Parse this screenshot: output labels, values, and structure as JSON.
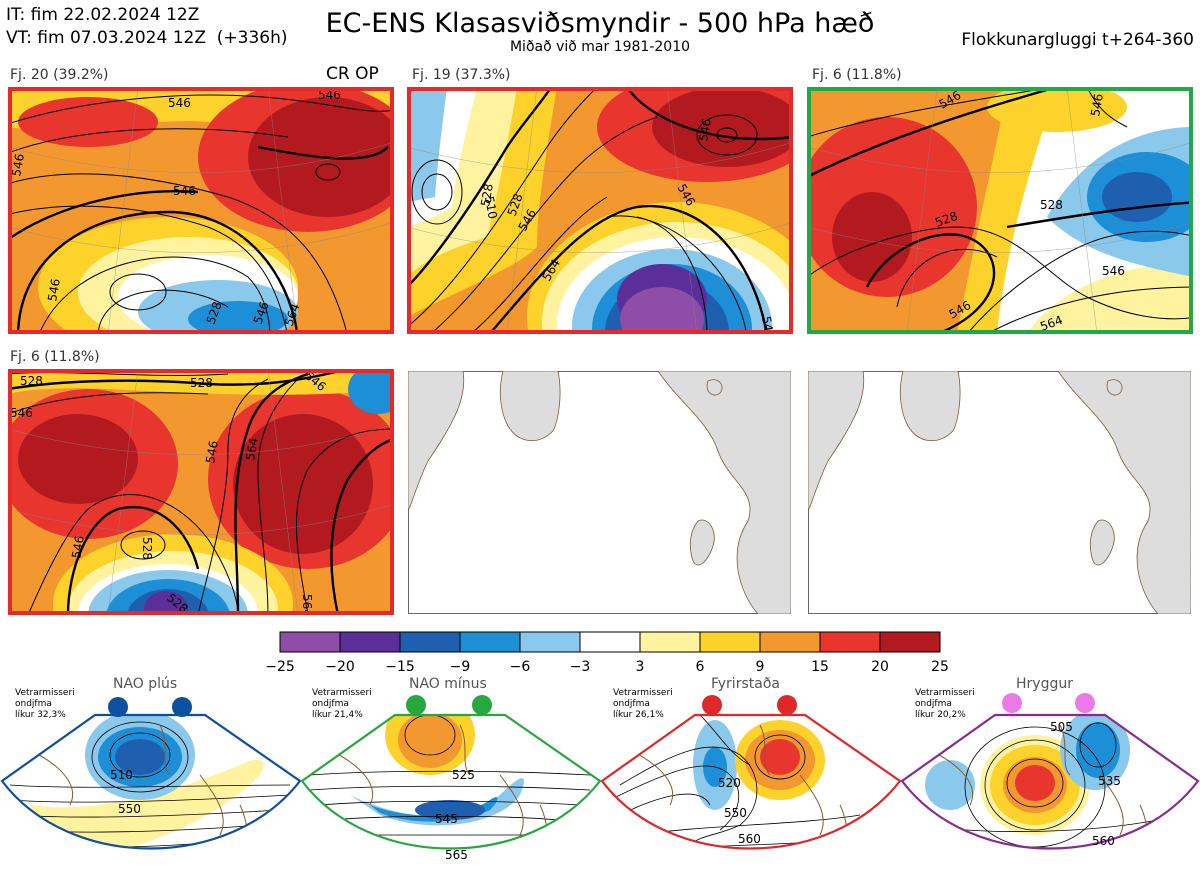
{
  "header": {
    "it_line": "IT: fim 22.02.2024 12Z",
    "vt_line": "VT: fim 07.03.2024 12Z  (+336h)",
    "title": "EC-ENS Klasasviðsmyndir - 500 hPa hæð",
    "subtitle": "Miðað við mar 1981-2010",
    "window": "Flokkunargluggi t+264-360"
  },
  "panels": [
    {
      "label": "Fj. 20 (39.2%)",
      "tag": "CR OP",
      "frame": "#e8292a",
      "regime": "Fyrirstaða",
      "contours": [
        "546",
        "546",
        "546",
        "546",
        "546",
        "528",
        "546",
        "564"
      ]
    },
    {
      "label": "Fj. 19 (37.3%)",
      "tag": "",
      "frame": "#e8292a",
      "regime": "Fyrirstaða",
      "contours": [
        "546",
        "528",
        "510",
        "528",
        "546",
        "546",
        "564",
        "546"
      ]
    },
    {
      "label": "Fj. 6 (11.8%)",
      "tag": "",
      "frame": "#22a845",
      "regime": "NAO mínus",
      "contours": [
        "546",
        "546",
        "528",
        "528",
        "546",
        "546",
        "564"
      ]
    },
    {
      "label": "Fj. 6 (11.8%)",
      "tag": "",
      "frame": "#e8292a",
      "regime": "Fyrirstaða",
      "contours": [
        "528",
        "546",
        "528",
        "546",
        "546",
        "564",
        "546",
        "528",
        "528",
        "546",
        "564"
      ]
    }
  ],
  "colorbar": {
    "ticks": [
      "−25",
      "−20",
      "−15",
      "−9",
      "−6",
      "−3",
      "3",
      "6",
      "9",
      "15",
      "20",
      "25"
    ],
    "colors": [
      "#8e4da6",
      "#5b2e9a",
      "#1f5fb0",
      "#1c8fd6",
      "#8ac9ec",
      "#ffffff",
      "#fff3a0",
      "#fdd22b",
      "#f3982f",
      "#e8362f",
      "#b31a1f"
    ]
  },
  "regimes": [
    {
      "name": "NAO plús",
      "season": "Vetrarmisseri",
      "line2": "ondjfma",
      "prob": "líkur 32,3%",
      "color": "#0d4fa0",
      "contours": [
        "510",
        "550"
      ]
    },
    {
      "name": "NAO mínus",
      "season": "Vetrarmisseri",
      "line2": "ondjfma",
      "prob": "líkur 21,4%",
      "color": "#27a83f",
      "contours": [
        "525",
        "545",
        "565"
      ]
    },
    {
      "name": "Fyrirstaða",
      "season": "Vetrarmisseri",
      "line2": "ondjfma",
      "prob": "líkur 26,1%",
      "color": "#e02828",
      "contours": [
        "520",
        "550",
        "560"
      ]
    },
    {
      "name": "Hryggur",
      "season": "Vetrarmisseri",
      "line2": "ondjfma",
      "prob": "líkur 20,2%",
      "color": "#8a2b8e",
      "contours": [
        "505",
        "535",
        "560"
      ]
    }
  ],
  "chart_data": {
    "type": "heatmap",
    "title": "EC-ENS Klasasviðsmyndir - 500 hPa hæð",
    "subtitle": "Miðað við mar 1981-2010",
    "colorbar_bounds": [
      -25,
      -20,
      -15,
      -9,
      -6,
      -3,
      3,
      6,
      9,
      15,
      20,
      25
    ],
    "clusters": [
      {
        "name": "Fj. 20",
        "percent": 39.2,
        "regime": "Fyrirstaða"
      },
      {
        "name": "Fj. 19",
        "percent": 37.3,
        "regime": "Fyrirstaða"
      },
      {
        "name": "Fj. 6",
        "percent": 11.8,
        "regime": "NAO mínus"
      },
      {
        "name": "Fj. 6",
        "percent": 11.8,
        "regime": "Fyrirstaða"
      }
    ],
    "regime_probabilities": [
      {
        "regime": "NAO plús",
        "percent": 32.3
      },
      {
        "regime": "NAO mínus",
        "percent": 21.4
      },
      {
        "regime": "Fyrirstaða",
        "percent": 26.1
      },
      {
        "regime": "Hryggur",
        "percent": 20.2
      }
    ]
  }
}
